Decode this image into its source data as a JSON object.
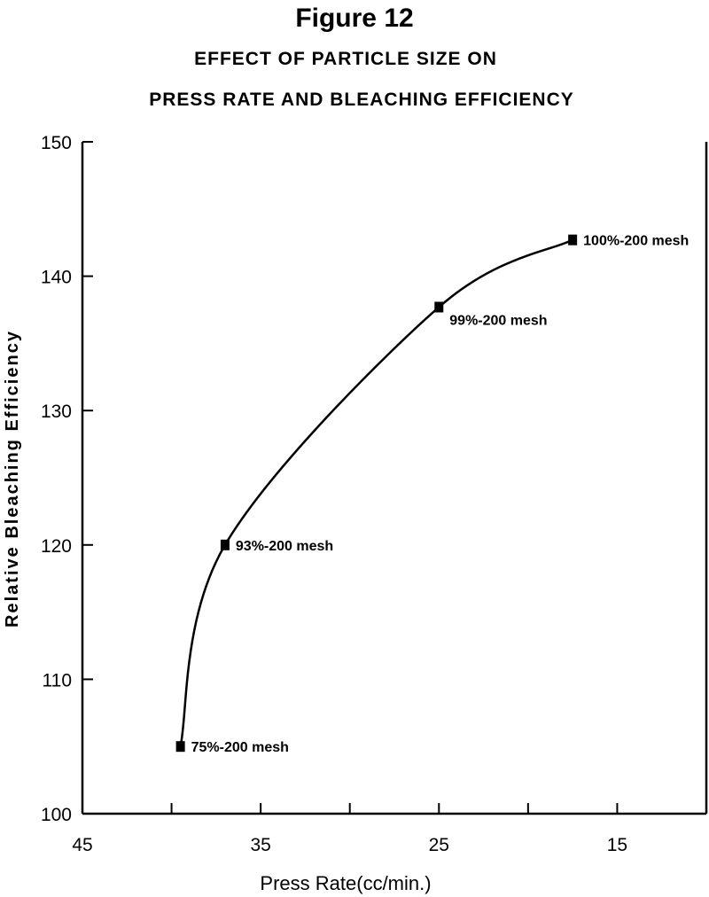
{
  "chart_data": {
    "type": "line",
    "title": "Figure 12",
    "subtitle_lines": [
      "EFFECT OF PARTICLE SIZE ON",
      "PRESS RATE AND BLEACHING EFFICIENCY"
    ],
    "xlabel": "Press Rate(cc/min.)",
    "ylabel": "Relative Bleaching Efficiency",
    "xlim": [
      45,
      10
    ],
    "ylim": [
      100,
      150
    ],
    "x_ticks": [
      45,
      35,
      25,
      15
    ],
    "y_ticks": [
      100,
      110,
      120,
      130,
      140,
      150
    ],
    "grid": false,
    "points": [
      {
        "x": 39.5,
        "y": 105,
        "label": "75%-200 mesh"
      },
      {
        "x": 37,
        "y": 120,
        "label": "93%-200 mesh"
      },
      {
        "x": 25,
        "y": 137.7,
        "label": "99%-200 mesh"
      },
      {
        "x": 17.5,
        "y": 142.7,
        "label": "100%-200 mesh"
      }
    ]
  }
}
